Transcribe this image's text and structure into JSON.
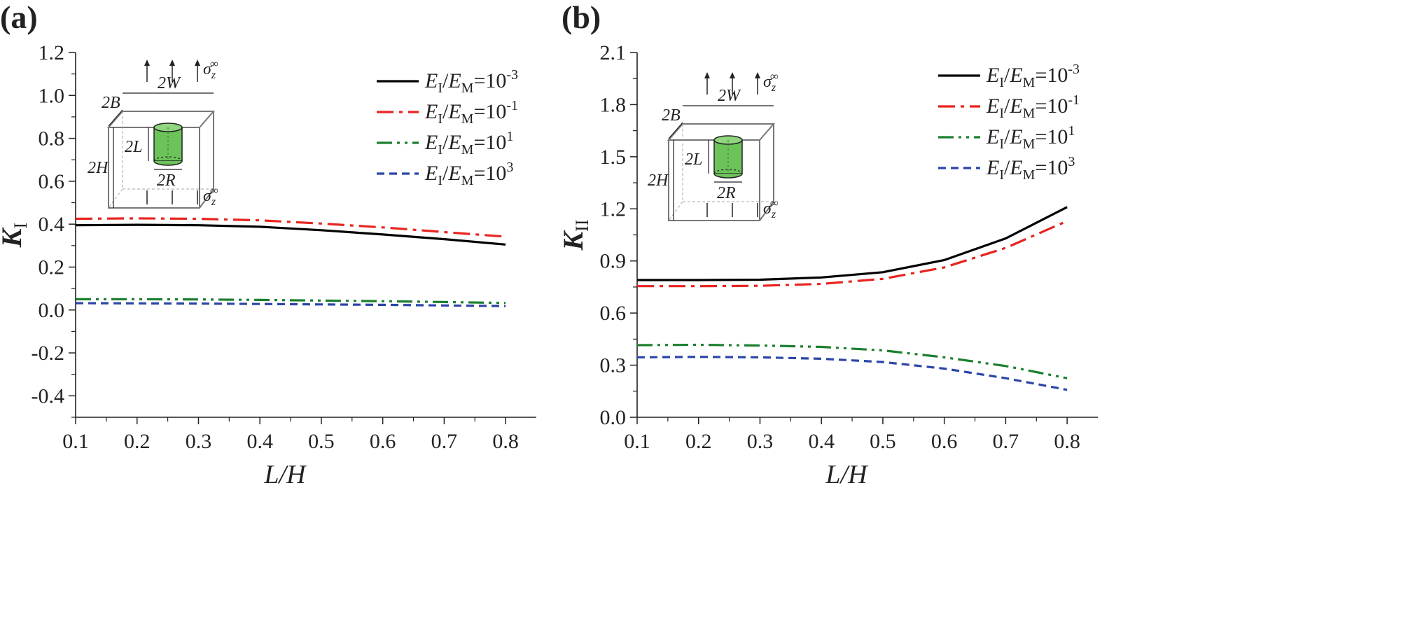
{
  "chart_data": [
    {
      "type": "line",
      "panel_label": "(a)",
      "xlabel": "L/H",
      "ylabel": "K",
      "ylabel_sub": "I",
      "xlim": [
        0.1,
        0.85
      ],
      "ylim": [
        -0.5,
        1.2
      ],
      "xticks": [
        "0.1",
        "0.2",
        "0.3",
        "0.4",
        "0.5",
        "0.6",
        "0.7",
        "0.8"
      ],
      "yticks": [
        "-0.4",
        "-0.2",
        "0.0",
        "0.2",
        "0.4",
        "0.6",
        "0.8",
        "1.0",
        "1.2"
      ],
      "x": [
        0.1,
        0.2,
        0.3,
        0.4,
        0.5,
        0.6,
        0.7,
        0.8
      ],
      "series": [
        {
          "name": "10-3",
          "color": "#000000",
          "dash": "solid",
          "values": [
            0.395,
            0.397,
            0.395,
            0.388,
            0.372,
            0.352,
            0.33,
            0.305
          ]
        },
        {
          "name": "10-1",
          "color": "#e8231f",
          "dash": "dashdot",
          "values": [
            0.425,
            0.427,
            0.425,
            0.418,
            0.403,
            0.385,
            0.363,
            0.342
          ]
        },
        {
          "name": "101",
          "color": "#1b7f2e",
          "dash": "dashdotdot",
          "values": [
            0.05,
            0.05,
            0.049,
            0.047,
            0.044,
            0.041,
            0.037,
            0.033
          ]
        },
        {
          "name": "103",
          "color": "#2b45a8",
          "dash": "dash",
          "values": [
            0.032,
            0.031,
            0.03,
            0.028,
            0.026,
            0.024,
            0.021,
            0.018
          ]
        }
      ],
      "legend_position": "top-right",
      "inset": {
        "sigma": "σ",
        "sigma_sub": "z",
        "sigma_sup": "∞",
        "w_label": "2W",
        "b_label": "2B",
        "h_label": "2H",
        "l_label": "2L",
        "r_label": "2R"
      }
    },
    {
      "type": "line",
      "panel_label": "(b)",
      "xlabel": "L/H",
      "ylabel": "K",
      "ylabel_sub": "II",
      "xlim": [
        0.1,
        0.85
      ],
      "ylim": [
        0.0,
        2.1
      ],
      "xticks": [
        "0.1",
        "0.2",
        "0.3",
        "0.4",
        "0.5",
        "0.6",
        "0.7",
        "0.8"
      ],
      "yticks": [
        "0.0",
        "0.3",
        "0.6",
        "0.9",
        "1.2",
        "1.5",
        "1.8",
        "2.1"
      ],
      "x": [
        0.1,
        0.2,
        0.3,
        0.4,
        0.5,
        0.6,
        0.7,
        0.8
      ],
      "series": [
        {
          "name": "10-3",
          "color": "#000000",
          "dash": "solid",
          "values": [
            0.79,
            0.79,
            0.792,
            0.805,
            0.835,
            0.905,
            1.03,
            1.21
          ]
        },
        {
          "name": "10-1",
          "color": "#e8231f",
          "dash": "dashdot",
          "values": [
            0.755,
            0.755,
            0.757,
            0.768,
            0.797,
            0.863,
            0.975,
            1.13
          ]
        },
        {
          "name": "101",
          "color": "#1b7f2e",
          "dash": "dashdotdot",
          "values": [
            0.415,
            0.417,
            0.413,
            0.405,
            0.385,
            0.345,
            0.295,
            0.225
          ]
        },
        {
          "name": "103",
          "color": "#2b45a8",
          "dash": "dash",
          "values": [
            0.345,
            0.348,
            0.345,
            0.337,
            0.318,
            0.28,
            0.225,
            0.158
          ]
        }
      ],
      "legend_position": "top-right",
      "inset": {
        "sigma": "σ",
        "sigma_sub": "z",
        "sigma_sup": "∞",
        "w_label": "2W",
        "b_label": "2B",
        "h_label": "2H",
        "l_label": "2L",
        "r_label": "2R"
      }
    }
  ],
  "legend": {
    "num": "E",
    "num_sub": "I",
    "den": "E",
    "den_sub": "M",
    "eq_base": "=10",
    "exponents": [
      "-3",
      "-1",
      "1",
      "3"
    ]
  }
}
